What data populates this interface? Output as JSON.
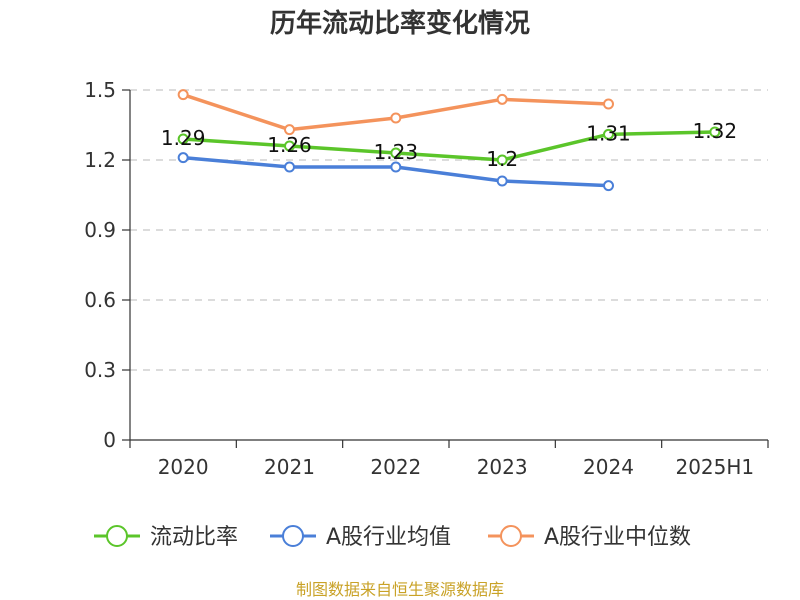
{
  "chart_data": {
    "type": "line",
    "title": "历年流动比率变化情况",
    "xlabel": "",
    "ylabel": "",
    "categories": [
      "2020",
      "2021",
      "2022",
      "2023",
      "2024",
      "2025H1"
    ],
    "ylim": [
      0,
      1.5
    ],
    "yticks": [
      "0",
      "0.3",
      "0.6",
      "0.9",
      "1.2",
      "1.5"
    ],
    "grid": true,
    "legend_position": "bottom",
    "series": [
      {
        "name": "流动比率",
        "color": "#5bc52a",
        "values": [
          1.29,
          1.26,
          1.23,
          1.2,
          1.31,
          1.32
        ],
        "labels": [
          "1.29",
          "1.26",
          "1.23",
          "1.2",
          "1.31",
          "1.32"
        ]
      },
      {
        "name": "A股行业均值",
        "color": "#4a7fd8",
        "values": [
          1.21,
          1.17,
          1.17,
          1.11,
          1.09,
          null
        ]
      },
      {
        "name": "A股行业中位数",
        "color": "#f4935c",
        "values": [
          1.48,
          1.33,
          1.38,
          1.46,
          1.44,
          null
        ]
      }
    ],
    "source": "制图数据来自恒生聚源数据库"
  }
}
